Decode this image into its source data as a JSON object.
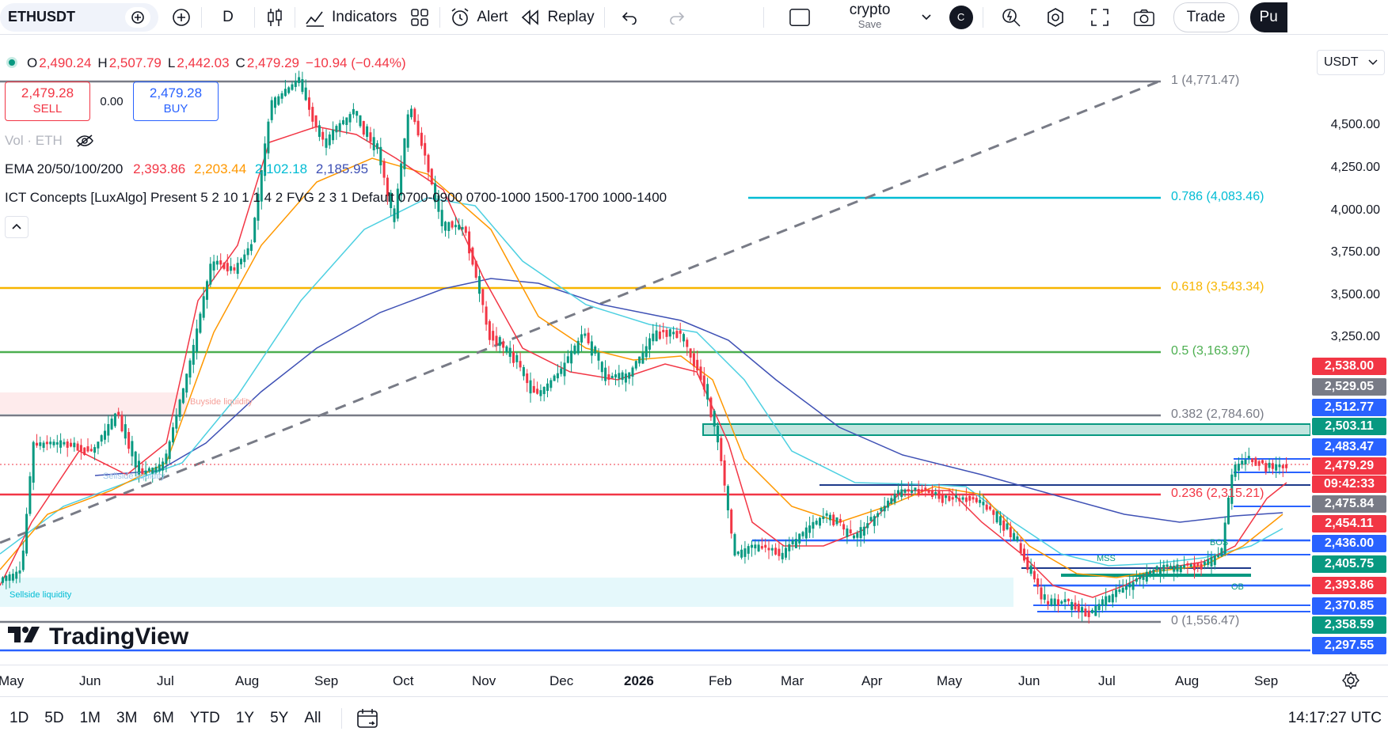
{
  "toolbar": {
    "symbol": "ETHUSDT",
    "interval": "D",
    "indicators_label": "Indicators",
    "alert_label": "Alert",
    "replay_label": "Replay",
    "layout_name": "crypto",
    "layout_save": "Save",
    "avatar_letter": "C",
    "trade_label": "Trade",
    "publish_label": "Pu"
  },
  "legend": {
    "open_label": "O",
    "open": "2,490.24",
    "high_label": "H",
    "high": "2,507.79",
    "low_label": "L",
    "low": "2,442.03",
    "close_label": "C",
    "close": "2,479.29",
    "change": "−10.94 (−0.44%)",
    "sell_price": "2,479.28",
    "sell_label": "SELL",
    "spread": "0.00",
    "buy_price": "2,479.28",
    "buy_label": "BUY",
    "vol_label": "Vol · ETH",
    "ema_label": "EMA 20/50/100/200",
    "ema_values": [
      "2,393.86",
      "2,203.44",
      "2,102.18",
      "2,185.95"
    ],
    "ict_label": "ICT Concepts [LuxAlgo] Present 5 2 10 1 1 4 2 FVG 2 3 1 Default 0700-0900 0700-1000 1500-1700 1000-1400"
  },
  "currency": "USDT",
  "price_axis": {
    "ticks": [
      "4,500.00",
      "4,250.00",
      "4,000.00",
      "3,750.00",
      "3,500.00",
      "3,250.00"
    ],
    "tags": [
      {
        "label": "2,538.00",
        "color": "#f23645"
      },
      {
        "label": "2,529.05",
        "color": "#787b86"
      },
      {
        "label": "2,512.77",
        "color": "#2962ff"
      },
      {
        "label": "2,503.11",
        "color": "#089981"
      },
      {
        "label": "2,483.47",
        "color": "#2962ff"
      },
      {
        "label": "2,479.29",
        "color": "#f23645"
      },
      {
        "label": "09:42:33",
        "color": "#f23645"
      },
      {
        "label": "2,475.84",
        "color": "#787b86"
      },
      {
        "label": "2,454.11",
        "color": "#f23645"
      },
      {
        "label": "2,436.00",
        "color": "#2962ff"
      },
      {
        "label": "2,405.75",
        "color": "#089981"
      },
      {
        "label": "2,393.86",
        "color": "#f23645"
      },
      {
        "label": "2,370.85",
        "color": "#2962ff"
      },
      {
        "label": "2,358.59",
        "color": "#089981"
      },
      {
        "label": "2,297.55",
        "color": "#2962ff"
      }
    ]
  },
  "fib_levels": [
    {
      "label": "1 (4,771.47)",
      "color": "#787b86"
    },
    {
      "label": "0.786 (4,083.46)",
      "color": "#00bcd4"
    },
    {
      "label": "0.618 (3,543.34)",
      "color": "#f7b500"
    },
    {
      "label": "0.5 (3,163.97)",
      "color": "#4caf50"
    },
    {
      "label": "0.382 (2,784.60)",
      "color": "#787b86"
    },
    {
      "label": "0.236 (2,315.21)",
      "color": "#f23645"
    },
    {
      "label": "0 (1,556.47)",
      "color": "#787b86"
    }
  ],
  "chart_labels": {
    "buyside": "Buyside liquidity",
    "sellside": "Sellside liquidity",
    "sellside2": "Sellside liquidity",
    "mss": "MSS",
    "bos": "BOS",
    "ob": "OB"
  },
  "time_axis": [
    "May",
    "Jun",
    "Jul",
    "Aug",
    "Sep",
    "Oct",
    "Nov",
    "Dec",
    "2026",
    "Feb",
    "Mar",
    "Apr",
    "May",
    "Jun",
    "Jul",
    "Aug",
    "Sep"
  ],
  "ranges": [
    "1D",
    "5D",
    "1M",
    "3M",
    "6M",
    "YTD",
    "1Y",
    "5Y",
    "All"
  ],
  "clock": "14:17:27 UTC",
  "brand": "TradingView",
  "chart_data": {
    "type": "candlestick",
    "symbol": "ETHUSDT",
    "x": [
      "May",
      "Jun",
      "Jul",
      "Aug",
      "Sep",
      "Oct",
      "Nov",
      "Dec",
      "2026",
      "Feb",
      "Mar",
      "Apr",
      "May",
      "Jun",
      "Jul",
      "Aug",
      "Sep"
    ],
    "close_approx": [
      2550,
      2550,
      2450,
      3700,
      4450,
      4150,
      3600,
      3050,
      3150,
      2800,
      2200,
      2200,
      2350,
      1800,
      2100,
      2350,
      2479
    ],
    "series": [
      {
        "name": "EMA 20",
        "color": "#f23645"
      },
      {
        "name": "EMA 50",
        "color": "#ff9800"
      },
      {
        "name": "EMA 100",
        "color": "#00bcd4"
      },
      {
        "name": "EMA 200",
        "color": "#3f51b5"
      }
    ]
  }
}
